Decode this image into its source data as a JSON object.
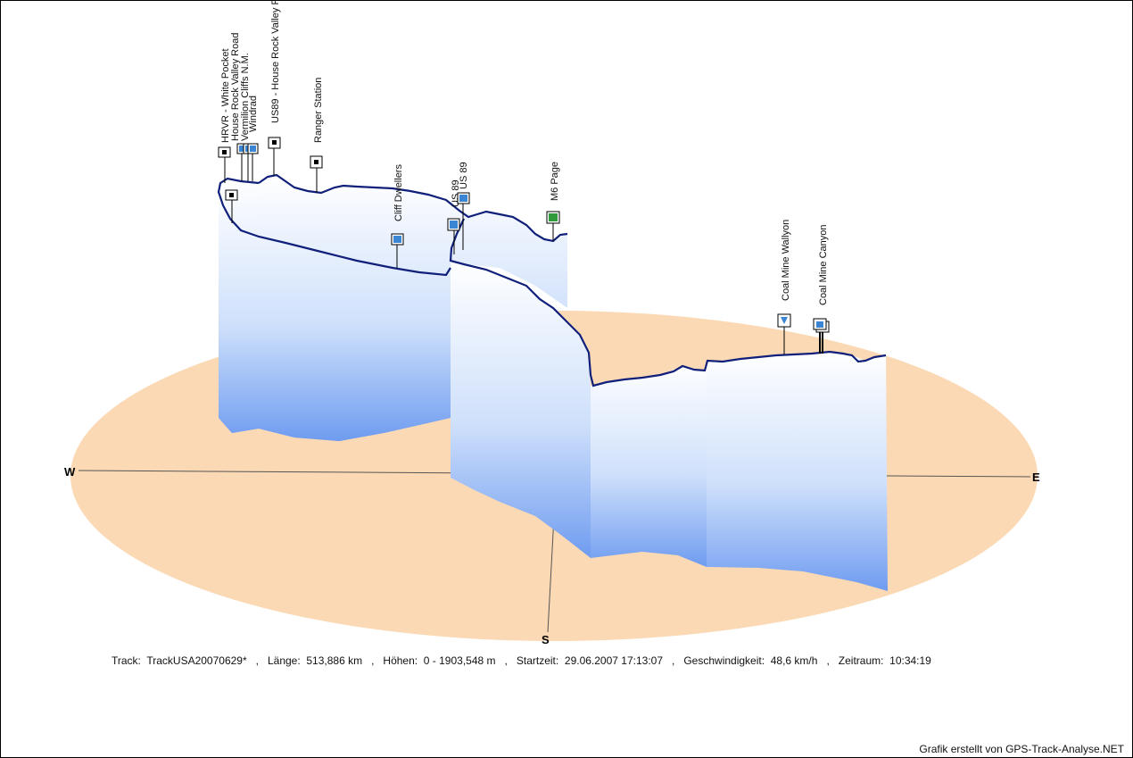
{
  "chart_data": {
    "type": "3d-elevation-profile",
    "title": "",
    "compass": {
      "west": "W",
      "east": "E",
      "south": "S"
    },
    "waypoints": [
      {
        "name": "HRVR - White Pocket",
        "icon": "square-marker"
      },
      {
        "name": "Vermilion Cliffs N.M.",
        "icon": "blue-pin-marker"
      },
      {
        "name": "House Rock Valley Road",
        "icon": "blue-pin-marker"
      },
      {
        "name": "Windrad",
        "icon": "blue-pin-marker"
      },
      {
        "name": "US89 - House Rock Valley R",
        "icon": "square-marker"
      },
      {
        "name": "Ranger Station",
        "icon": "square-marker"
      },
      {
        "name": "Cliff Dwellers",
        "icon": "blue-pin-marker"
      },
      {
        "name": "US 89",
        "icon": "blue-pin-marker"
      },
      {
        "name": "US 89",
        "icon": "blue-pin-marker"
      },
      {
        "name": "M6 Page",
        "icon": "green-flag-marker"
      },
      {
        "name": "Coal Mine Wallyon",
        "icon": "blue-flag-marker"
      },
      {
        "name": "Coal Mine Canyon",
        "icon": "blue-pin-marker"
      }
    ],
    "elevation_range_m": [
      0,
      1903.548
    ]
  },
  "info": {
    "track_label": "Track:",
    "track_value": "TrackUSA20070629*",
    "length_label": "Länge:",
    "length_value": "513,886 km",
    "height_label": "Höhen:",
    "height_value": "0 - 1903,548 m",
    "start_label": "Startzeit:",
    "start_value": "29.06.2007 17:13:07",
    "speed_label": "Geschwindigkeit:",
    "speed_value": "48,6 km/h",
    "duration_label": "Zeitraum:",
    "duration_value": "10:34:19"
  },
  "credit": "Grafik erstellt von GPS-Track-Analyse.NET",
  "colors": {
    "ground": "#fbd9b5",
    "profile_line": "#10207a",
    "curtain_top": "#ffffff",
    "curtain_bottom": "#6f9cf0",
    "marker_blue": "#3a86d4",
    "marker_green": "#2f9a3a"
  }
}
